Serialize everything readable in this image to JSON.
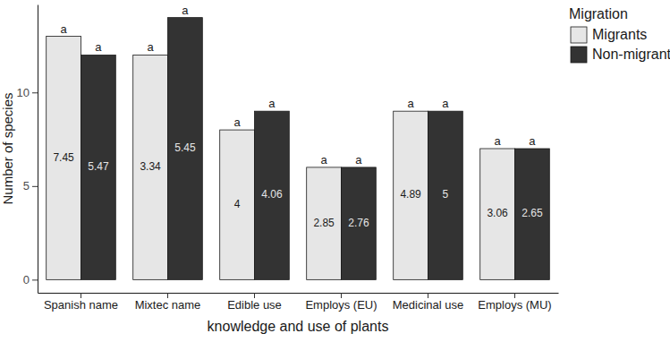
{
  "chart_data": {
    "type": "bar",
    "x_label": "knowledge and use of plants",
    "y_label": "Number of species",
    "categories": [
      "Spanish name",
      "Mixtec name",
      "Edible use",
      "Employs (EU)",
      "Medicinal use",
      "Employs (MU)"
    ],
    "series": [
      {
        "name": "Migrants",
        "color": "#e6e6e6",
        "values": [
          13,
          12,
          8,
          6,
          9,
          7
        ],
        "means": [
          7.45,
          3.34,
          4,
          2.85,
          4.89,
          3.06
        ],
        "significance": [
          "a",
          "a",
          "a",
          "a",
          "a",
          "a"
        ]
      },
      {
        "name": "Non-migrants",
        "color": "#333333",
        "values": [
          12,
          14,
          9,
          6,
          9,
          7
        ],
        "means": [
          5.47,
          5.45,
          4.06,
          2.76,
          5,
          2.65
        ],
        "significance": [
          "a",
          "a",
          "a",
          "a",
          "a",
          "a"
        ]
      }
    ],
    "ylim": [
      -0.7,
      14.7
    ],
    "yticks": [
      0,
      5,
      10
    ],
    "legend": "right",
    "legend_title": "Migration"
  }
}
